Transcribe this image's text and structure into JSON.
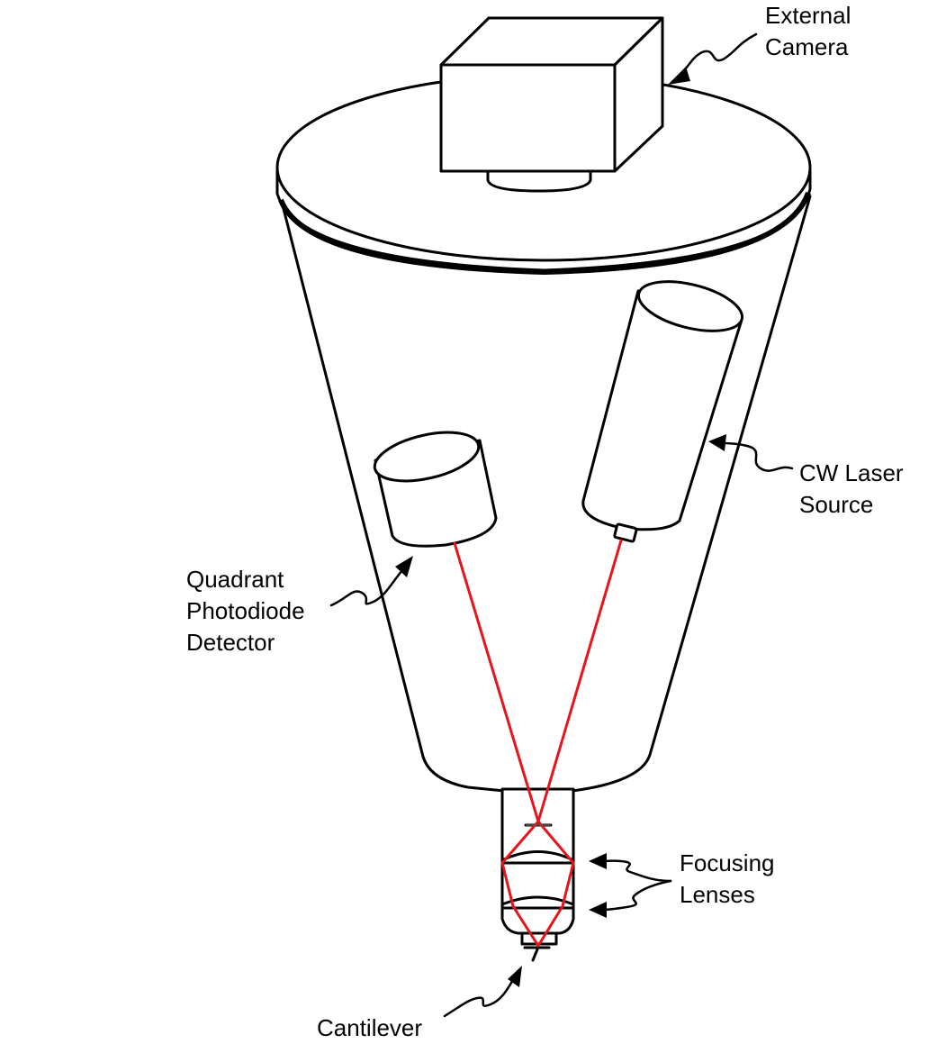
{
  "labels": {
    "external_camera": [
      "External",
      "Camera"
    ],
    "cw_laser_source": [
      "CW Laser",
      "Source"
    ],
    "quadrant_photodiode_detector": [
      "Quadrant",
      "Photodiode",
      "Detector"
    ],
    "focusing_lenses": [
      "Focusing",
      "Lenses"
    ],
    "cantilever": [
      "Cantilever"
    ]
  },
  "colors": {
    "outline": "#000000",
    "laser_beam": "#e8141b",
    "background": "#ffffff"
  }
}
